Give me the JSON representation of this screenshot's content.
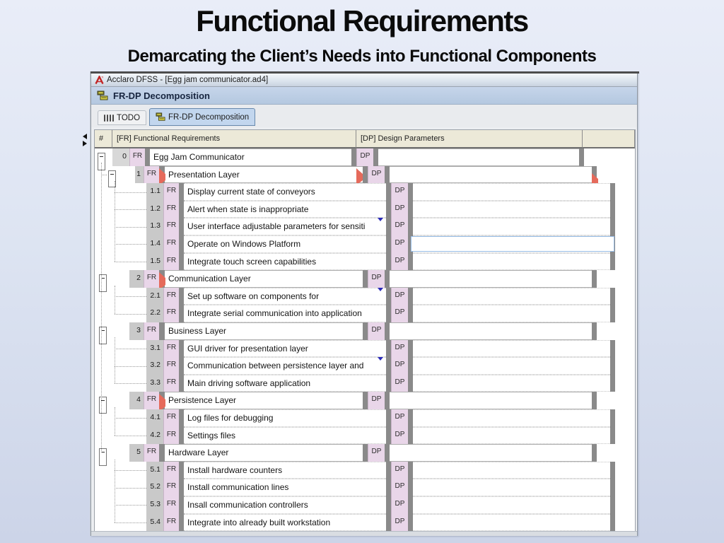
{
  "slide": {
    "title": "Functional Requirements",
    "subtitle": "Demarcating the Client’s Needs into Functional Components"
  },
  "window": {
    "title": "Acclaro DFSS - [Egg jam communicator.ad4]",
    "app_icon": "acclaro-app-icon",
    "header": {
      "label": "FR-DP Decomposition",
      "icon": "frdp-decomposition-icon"
    },
    "tabs": [
      {
        "label": "TODO",
        "icon": "todo-tally-icon",
        "active": false
      },
      {
        "label": "FR-DP Decomposition",
        "icon": "frdp-decomposition-icon",
        "active": true
      }
    ]
  },
  "grid": {
    "fr_badge": "FR",
    "dp_badge": "DP",
    "columns": [
      {
        "label": "#"
      },
      {
        "label": "[FR] Functional Requirements"
      },
      {
        "label": "[DP] Design Parameters"
      },
      {
        "label": ""
      }
    ],
    "rows": [
      {
        "num": "0",
        "level": 0,
        "fr": "Egg Jam Communicator",
        "dp": "",
        "expandable": true
      },
      {
        "num": "1",
        "level": 1,
        "fr": "Presentation Layer",
        "dp": "",
        "expandable": true,
        "red_flag": true,
        "end_flag": true,
        "selected_row": true
      },
      {
        "num": "1.1",
        "level": 2,
        "fr": "Display current state of conveyors",
        "dp": ""
      },
      {
        "num": "1.2",
        "level": 2,
        "fr": "Alert when state is inappropriate",
        "dp": ""
      },
      {
        "num": "1.3",
        "level": 2,
        "fr": "User interface adjustable parameters for sensiti",
        "dp": "",
        "overflow": true
      },
      {
        "num": "1.4",
        "level": 2,
        "fr": "Operate on Windows Platform",
        "dp": "",
        "dp_selected": true
      },
      {
        "num": "1.5",
        "level": 2,
        "fr": "Integrate touch screen capabilities",
        "dp": ""
      },
      {
        "num": "2",
        "level": 1,
        "fr": "Communication Layer",
        "dp": "",
        "expandable": true,
        "red_flag": true
      },
      {
        "num": "2.1",
        "level": 2,
        "fr": "Set up software on components for",
        "dp": "",
        "overflow": true
      },
      {
        "num": "2.2",
        "level": 2,
        "fr": "Integrate serial communication into application",
        "dp": ""
      },
      {
        "num": "3",
        "level": 1,
        "fr": "Business Layer",
        "dp": "",
        "expandable": true
      },
      {
        "num": "3.1",
        "level": 2,
        "fr": "GUI driver for presentation layer",
        "dp": ""
      },
      {
        "num": "3.2",
        "level": 2,
        "fr": "Communication between persistence layer and",
        "dp": "",
        "overflow": true
      },
      {
        "num": "3.3",
        "level": 2,
        "fr": "Main driving software application",
        "dp": ""
      },
      {
        "num": "4",
        "level": 1,
        "fr": "Persistence Layer",
        "dp": "",
        "expandable": true,
        "red_flag": true
      },
      {
        "num": "4.1",
        "level": 2,
        "fr": "Log files for debugging",
        "dp": ""
      },
      {
        "num": "4.2",
        "level": 2,
        "fr": "Settings files",
        "dp": ""
      },
      {
        "num": "5",
        "level": 1,
        "fr": "Hardware Layer",
        "dp": "",
        "expandable": true
      },
      {
        "num": "5.1",
        "level": 2,
        "fr": "Install hardware counters",
        "dp": ""
      },
      {
        "num": "5.2",
        "level": 2,
        "fr": "Install communication lines",
        "dp": ""
      },
      {
        "num": "5.3",
        "level": 2,
        "fr": "Insall communication controllers",
        "dp": ""
      },
      {
        "num": "5.4",
        "level": 2,
        "fr": "Integrate into already built workstation",
        "dp": ""
      }
    ]
  },
  "colors": {
    "header_beige": "#ece9d8",
    "badge_pink": "#e9d6e9",
    "bar_gray": "#8a8a8a",
    "flag_red": "#e56a5b",
    "focus_blue": "#96bce6",
    "headerbar_blue": "#b9cbe3",
    "slide_bg_top": "#e9edf8",
    "slide_bg_bottom": "#ccd4e8"
  }
}
